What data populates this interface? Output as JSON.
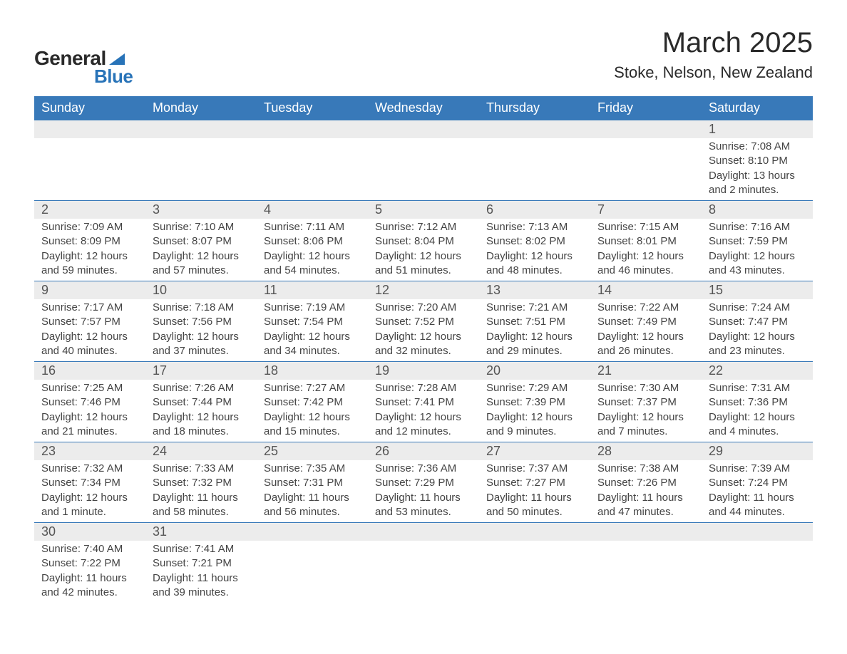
{
  "logo": {
    "text1": "General",
    "text2": "Blue",
    "accent": "#2873b8"
  },
  "title": "March 2025",
  "location": "Stoke, Nelson, New Zealand",
  "colors": {
    "header_bg": "#3879b9",
    "header_text": "#ffffff",
    "daynum_bg": "#ececec",
    "border": "#3879b9",
    "text": "#444444"
  },
  "fonts": {
    "title_size": 40,
    "location_size": 22,
    "header_size": 18,
    "body_size": 15
  },
  "day_labels": [
    "Sunday",
    "Monday",
    "Tuesday",
    "Wednesday",
    "Thursday",
    "Friday",
    "Saturday"
  ],
  "weeks": [
    [
      {
        "n": "",
        "sr": "",
        "ss": "",
        "dl": ""
      },
      {
        "n": "",
        "sr": "",
        "ss": "",
        "dl": ""
      },
      {
        "n": "",
        "sr": "",
        "ss": "",
        "dl": ""
      },
      {
        "n": "",
        "sr": "",
        "ss": "",
        "dl": ""
      },
      {
        "n": "",
        "sr": "",
        "ss": "",
        "dl": ""
      },
      {
        "n": "",
        "sr": "",
        "ss": "",
        "dl": ""
      },
      {
        "n": "1",
        "sr": "Sunrise: 7:08 AM",
        "ss": "Sunset: 8:10 PM",
        "dl": "Daylight: 13 hours and 2 minutes."
      }
    ],
    [
      {
        "n": "2",
        "sr": "Sunrise: 7:09 AM",
        "ss": "Sunset: 8:09 PM",
        "dl": "Daylight: 12 hours and 59 minutes."
      },
      {
        "n": "3",
        "sr": "Sunrise: 7:10 AM",
        "ss": "Sunset: 8:07 PM",
        "dl": "Daylight: 12 hours and 57 minutes."
      },
      {
        "n": "4",
        "sr": "Sunrise: 7:11 AM",
        "ss": "Sunset: 8:06 PM",
        "dl": "Daylight: 12 hours and 54 minutes."
      },
      {
        "n": "5",
        "sr": "Sunrise: 7:12 AM",
        "ss": "Sunset: 8:04 PM",
        "dl": "Daylight: 12 hours and 51 minutes."
      },
      {
        "n": "6",
        "sr": "Sunrise: 7:13 AM",
        "ss": "Sunset: 8:02 PM",
        "dl": "Daylight: 12 hours and 48 minutes."
      },
      {
        "n": "7",
        "sr": "Sunrise: 7:15 AM",
        "ss": "Sunset: 8:01 PM",
        "dl": "Daylight: 12 hours and 46 minutes."
      },
      {
        "n": "8",
        "sr": "Sunrise: 7:16 AM",
        "ss": "Sunset: 7:59 PM",
        "dl": "Daylight: 12 hours and 43 minutes."
      }
    ],
    [
      {
        "n": "9",
        "sr": "Sunrise: 7:17 AM",
        "ss": "Sunset: 7:57 PM",
        "dl": "Daylight: 12 hours and 40 minutes."
      },
      {
        "n": "10",
        "sr": "Sunrise: 7:18 AM",
        "ss": "Sunset: 7:56 PM",
        "dl": "Daylight: 12 hours and 37 minutes."
      },
      {
        "n": "11",
        "sr": "Sunrise: 7:19 AM",
        "ss": "Sunset: 7:54 PM",
        "dl": "Daylight: 12 hours and 34 minutes."
      },
      {
        "n": "12",
        "sr": "Sunrise: 7:20 AM",
        "ss": "Sunset: 7:52 PM",
        "dl": "Daylight: 12 hours and 32 minutes."
      },
      {
        "n": "13",
        "sr": "Sunrise: 7:21 AM",
        "ss": "Sunset: 7:51 PM",
        "dl": "Daylight: 12 hours and 29 minutes."
      },
      {
        "n": "14",
        "sr": "Sunrise: 7:22 AM",
        "ss": "Sunset: 7:49 PM",
        "dl": "Daylight: 12 hours and 26 minutes."
      },
      {
        "n": "15",
        "sr": "Sunrise: 7:24 AM",
        "ss": "Sunset: 7:47 PM",
        "dl": "Daylight: 12 hours and 23 minutes."
      }
    ],
    [
      {
        "n": "16",
        "sr": "Sunrise: 7:25 AM",
        "ss": "Sunset: 7:46 PM",
        "dl": "Daylight: 12 hours and 21 minutes."
      },
      {
        "n": "17",
        "sr": "Sunrise: 7:26 AM",
        "ss": "Sunset: 7:44 PM",
        "dl": "Daylight: 12 hours and 18 minutes."
      },
      {
        "n": "18",
        "sr": "Sunrise: 7:27 AM",
        "ss": "Sunset: 7:42 PM",
        "dl": "Daylight: 12 hours and 15 minutes."
      },
      {
        "n": "19",
        "sr": "Sunrise: 7:28 AM",
        "ss": "Sunset: 7:41 PM",
        "dl": "Daylight: 12 hours and 12 minutes."
      },
      {
        "n": "20",
        "sr": "Sunrise: 7:29 AM",
        "ss": "Sunset: 7:39 PM",
        "dl": "Daylight: 12 hours and 9 minutes."
      },
      {
        "n": "21",
        "sr": "Sunrise: 7:30 AM",
        "ss": "Sunset: 7:37 PM",
        "dl": "Daylight: 12 hours and 7 minutes."
      },
      {
        "n": "22",
        "sr": "Sunrise: 7:31 AM",
        "ss": "Sunset: 7:36 PM",
        "dl": "Daylight: 12 hours and 4 minutes."
      }
    ],
    [
      {
        "n": "23",
        "sr": "Sunrise: 7:32 AM",
        "ss": "Sunset: 7:34 PM",
        "dl": "Daylight: 12 hours and 1 minute."
      },
      {
        "n": "24",
        "sr": "Sunrise: 7:33 AM",
        "ss": "Sunset: 7:32 PM",
        "dl": "Daylight: 11 hours and 58 minutes."
      },
      {
        "n": "25",
        "sr": "Sunrise: 7:35 AM",
        "ss": "Sunset: 7:31 PM",
        "dl": "Daylight: 11 hours and 56 minutes."
      },
      {
        "n": "26",
        "sr": "Sunrise: 7:36 AM",
        "ss": "Sunset: 7:29 PM",
        "dl": "Daylight: 11 hours and 53 minutes."
      },
      {
        "n": "27",
        "sr": "Sunrise: 7:37 AM",
        "ss": "Sunset: 7:27 PM",
        "dl": "Daylight: 11 hours and 50 minutes."
      },
      {
        "n": "28",
        "sr": "Sunrise: 7:38 AM",
        "ss": "Sunset: 7:26 PM",
        "dl": "Daylight: 11 hours and 47 minutes."
      },
      {
        "n": "29",
        "sr": "Sunrise: 7:39 AM",
        "ss": "Sunset: 7:24 PM",
        "dl": "Daylight: 11 hours and 44 minutes."
      }
    ],
    [
      {
        "n": "30",
        "sr": "Sunrise: 7:40 AM",
        "ss": "Sunset: 7:22 PM",
        "dl": "Daylight: 11 hours and 42 minutes."
      },
      {
        "n": "31",
        "sr": "Sunrise: 7:41 AM",
        "ss": "Sunset: 7:21 PM",
        "dl": "Daylight: 11 hours and 39 minutes."
      },
      {
        "n": "",
        "sr": "",
        "ss": "",
        "dl": ""
      },
      {
        "n": "",
        "sr": "",
        "ss": "",
        "dl": ""
      },
      {
        "n": "",
        "sr": "",
        "ss": "",
        "dl": ""
      },
      {
        "n": "",
        "sr": "",
        "ss": "",
        "dl": ""
      },
      {
        "n": "",
        "sr": "",
        "ss": "",
        "dl": ""
      }
    ]
  ]
}
